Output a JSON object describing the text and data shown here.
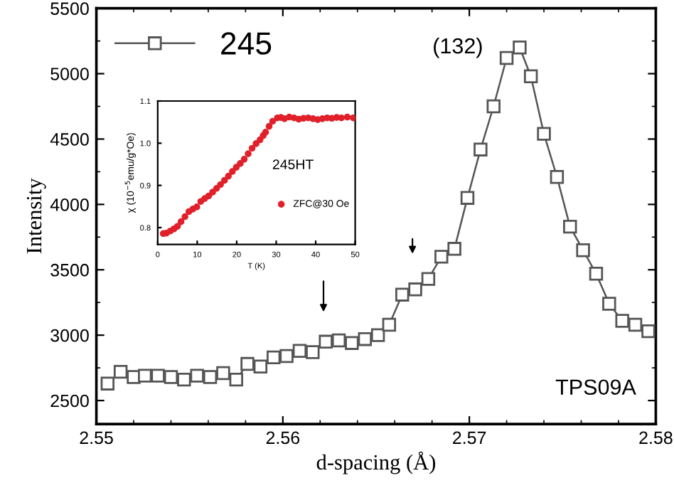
{
  "chart_data": [
    {
      "type": "line",
      "xlabel": "d-spacing (Å)",
      "ylabel": "Intensity",
      "x": [
        2.5506,
        2.5513,
        2.552,
        2.5526,
        2.5533,
        2.554,
        2.5547,
        2.5554,
        2.5561,
        2.5568,
        2.5575,
        2.5581,
        2.5588,
        2.5595,
        2.5602,
        2.5609,
        2.5616,
        2.5623,
        2.563,
        2.5637,
        2.5644,
        2.5651,
        2.5657,
        2.5664,
        2.5671,
        2.5678,
        2.5685,
        2.5692,
        2.5699,
        2.5706,
        2.5713,
        2.572,
        2.5727,
        2.5733,
        2.574,
        2.5747,
        2.5754,
        2.5761,
        2.5768,
        2.5775,
        2.5782,
        2.5789,
        2.5796
      ],
      "series": [
        {
          "name": "245",
          "color": "#555555",
          "marker": "square",
          "values": [
            2630,
            2720,
            2680,
            2690,
            2690,
            2680,
            2660,
            2690,
            2680,
            2710,
            2660,
            2780,
            2760,
            2830,
            2840,
            2880,
            2870,
            2950,
            2960,
            2940,
            2970,
            3000,
            3080,
            3310,
            3350,
            3430,
            3600,
            3660,
            4050,
            4420,
            4750,
            5120,
            5200,
            4980,
            4540,
            4210,
            3830,
            3650,
            3470,
            3240,
            3110,
            3080,
            3030
          ]
        }
      ],
      "xlim": [
        2.55,
        2.58
      ],
      "xticks": [
        2.55,
        {
          "value": 2.552,
          "label": null
        },
        {
          "value": 2.554,
          "label": null
        },
        {
          "value": 2.556,
          "label": null
        },
        {
          "value": 2.558,
          "label": null
        },
        2.56,
        {
          "value": 2.562,
          "label": null
        },
        {
          "value": 2.564,
          "label": null
        },
        {
          "value": 2.566,
          "label": null
        },
        {
          "value": 2.568,
          "label": null
        },
        2.57,
        {
          "value": 2.572,
          "label": null
        },
        {
          "value": 2.574,
          "label": null
        },
        {
          "value": 2.576,
          "label": null
        },
        {
          "value": 2.578,
          "label": null
        },
        2.58
      ],
      "ylim": [
        2320,
        5500
      ],
      "yticks": [
        2500,
        {
          "value": 2750,
          "label": null
        },
        3000,
        {
          "value": 3250,
          "label": null
        },
        3500,
        {
          "value": 3750,
          "label": null
        },
        4000,
        {
          "value": 4250,
          "label": null
        },
        4500,
        {
          "value": 4750,
          "label": null
        },
        5000,
        {
          "value": 5250,
          "label": null
        },
        5500
      ],
      "legend": "top left",
      "grid": false,
      "annotations": [
        "(132)",
        "TPS09A"
      ]
    },
    {
      "type": "scatter",
      "xlabel": "T (K)",
      "ylabel": "χ (10$^{−5}$emu/g*Oe)",
      "x": [
        1.4,
        2.2,
        3.2,
        4.1,
        5.0,
        5.9,
        6.9,
        7.9,
        8.9,
        9.9,
        10.9,
        11.9,
        12.9,
        13.9,
        14.9,
        15.9,
        16.9,
        17.9,
        18.9,
        19.9,
        20.9,
        21.9,
        22.9,
        23.9,
        24.9,
        25.9,
        26.7,
        27.3,
        28.2,
        29.1,
        30.3,
        31.2,
        32.1,
        33.3,
        34.5,
        35.7,
        36.9,
        38.1,
        39.3,
        40.5,
        41.7,
        42.9,
        44.1,
        45.3,
        46.5,
        48.0,
        49.5
      ],
      "series": [
        {
          "name": "ZFC@30 Oe",
          "color": "#e0202a",
          "marker": "circle",
          "values": [
            0.786,
            0.787,
            0.792,
            0.797,
            0.803,
            0.814,
            0.826,
            0.838,
            0.844,
            0.849,
            0.862,
            0.869,
            0.875,
            0.884,
            0.893,
            0.902,
            0.912,
            0.922,
            0.933,
            0.943,
            0.952,
            0.962,
            0.975,
            0.988,
            0.999,
            1.008,
            1.018,
            1.026,
            1.04,
            1.052,
            1.06,
            1.061,
            1.058,
            1.062,
            1.06,
            1.057,
            1.059,
            1.06,
            1.058,
            1.056,
            1.058,
            1.06,
            1.059,
            1.061,
            1.06,
            1.062,
            1.06
          ]
        }
      ],
      "xlim": [
        0,
        50
      ],
      "xticks": [
        0,
        10,
        20,
        30,
        40,
        50
      ],
      "ylim": [
        0.76,
        1.1
      ],
      "yticks": [
        {
          "value": 0.8,
          "label": "0.8"
        },
        {
          "value": 0.9,
          "label": "0.9"
        },
        {
          "value": 1.0,
          "label": "1.0"
        },
        {
          "value": 1.1,
          "label": "1.1"
        }
      ],
      "legend": "right",
      "grid": false,
      "annotations": [
        "245HT"
      ]
    }
  ]
}
